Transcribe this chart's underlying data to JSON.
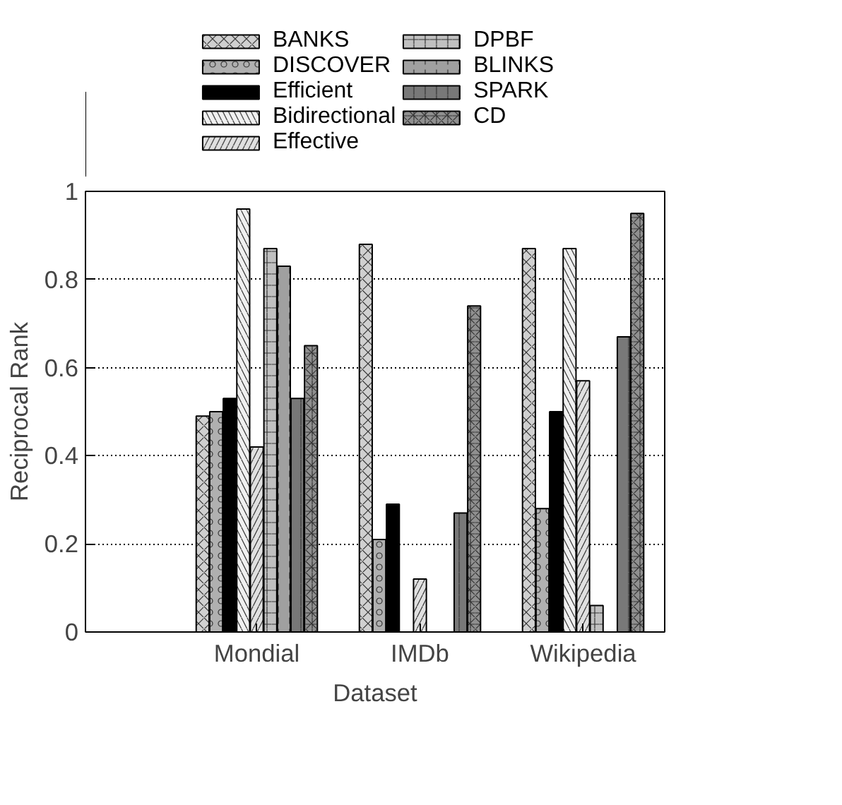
{
  "chart_data": {
    "type": "bar",
    "xlabel": "Dataset",
    "ylabel": "Reciprocal Rank",
    "categories": [
      "Mondial",
      "IMDb",
      "Wikipedia"
    ],
    "series": [
      {
        "name": "BANKS",
        "color": "#d0d0d0",
        "values": [
          0.49,
          0.88,
          0.87
        ]
      },
      {
        "name": "DISCOVER",
        "color": "#b0b0b0",
        "values": [
          0.5,
          0.21,
          0.28
        ]
      },
      {
        "name": "Efficient",
        "color": "#000000",
        "values": [
          0.53,
          0.29,
          0.5
        ]
      },
      {
        "name": "Bidirectional",
        "color": "#f0f0f0",
        "values": [
          0.96,
          null,
          0.87
        ]
      },
      {
        "name": "Effective",
        "color": "#e0e0e0",
        "values": [
          0.42,
          0.12,
          0.57
        ]
      },
      {
        "name": "DPBF",
        "color": "#c0c0c0",
        "values": [
          0.87,
          null,
          0.06
        ]
      },
      {
        "name": "BLINKS",
        "color": "#a0a0a0",
        "values": [
          0.83,
          null,
          null
        ]
      },
      {
        "name": "SPARK",
        "color": "#787878",
        "values": [
          0.53,
          0.27,
          0.67
        ]
      },
      {
        "name": "CD",
        "color": "#909090",
        "values": [
          0.65,
          0.74,
          0.95
        ]
      }
    ],
    "ylim": [
      0,
      1
    ],
    "yticks": [
      0,
      {
        "value": 0.2,
        "label": "0.2"
      },
      {
        "value": 0.4,
        "label": "0.4"
      },
      {
        "value": 0.6,
        "label": "0.6"
      },
      {
        "value": 0.8,
        "label": "0.8"
      },
      1
    ],
    "grid": "y",
    "legend": "top"
  }
}
